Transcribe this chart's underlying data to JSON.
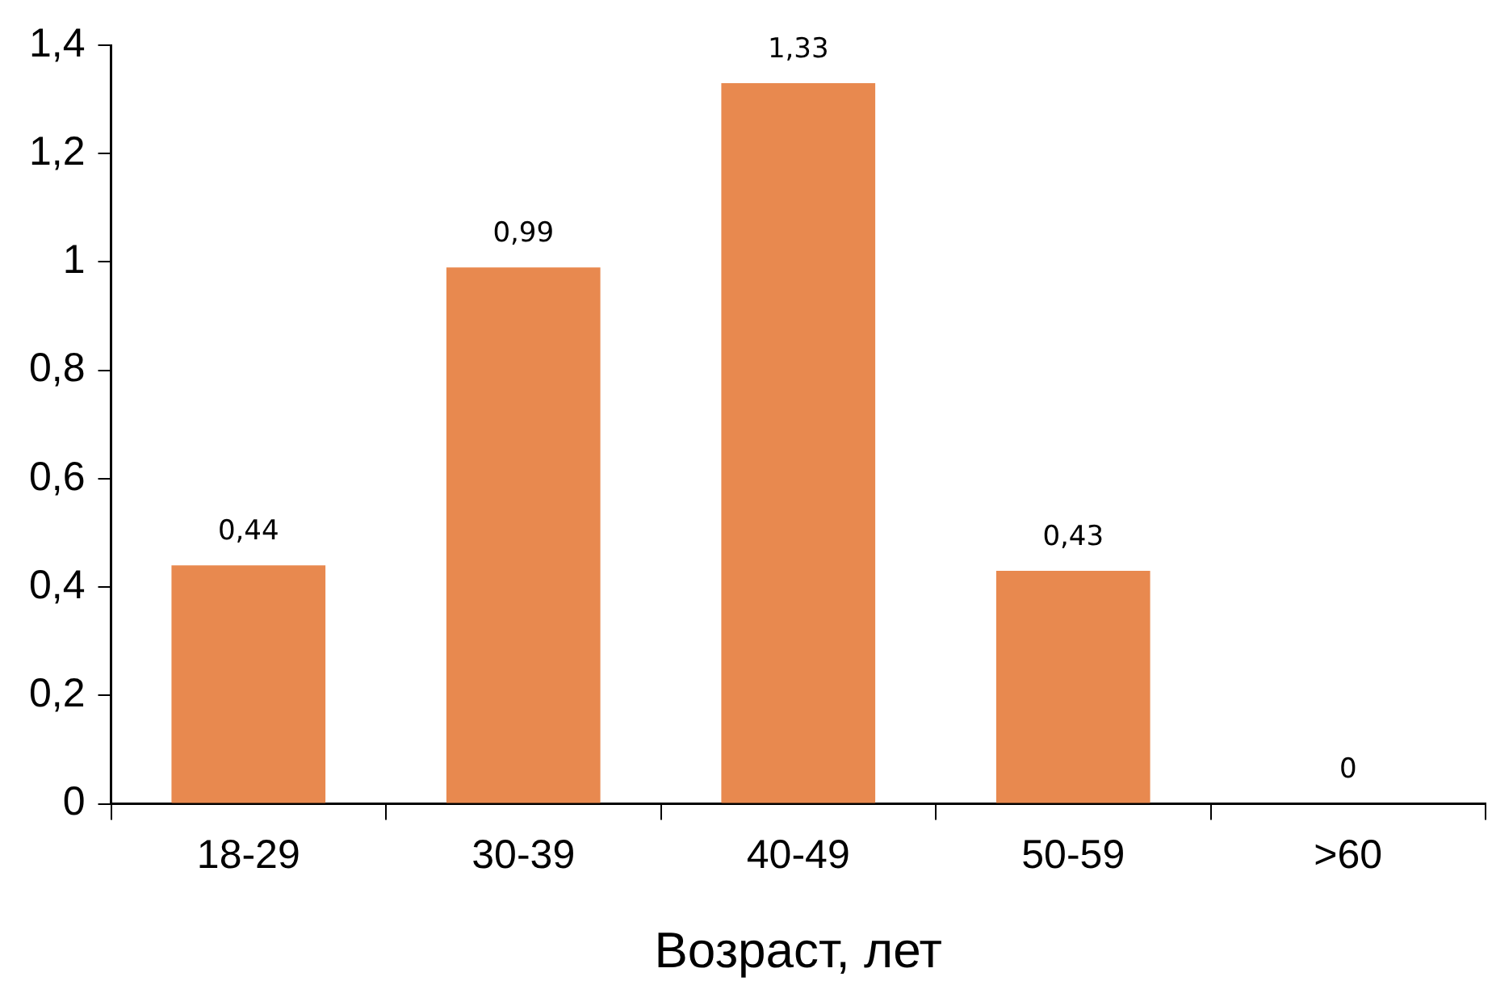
{
  "chart_data": {
    "type": "bar",
    "xlabel": "Возраст, лет",
    "categories": [
      "18-29",
      "30-39",
      "40-49",
      "50-59",
      ">60"
    ],
    "values": [
      0.44,
      0.99,
      1.33,
      0.43,
      0
    ],
    "value_labels": [
      "0,44",
      "0,99",
      "1,33",
      "0,43",
      "0"
    ],
    "color": "#e8894f",
    "ylim": [
      0,
      1.4
    ],
    "yticks": [
      {
        "value": 0,
        "label": "0"
      },
      {
        "value": 0.2,
        "label": "0,2"
      },
      {
        "value": 0.4,
        "label": "0,4"
      },
      {
        "value": 0.6,
        "label": "0,6"
      },
      {
        "value": 0.8,
        "label": "0,8"
      },
      {
        "value": 1,
        "label": "1"
      },
      {
        "value": 1.2,
        "label": "1,2"
      },
      {
        "value": 1.4,
        "label": "1,4"
      }
    ],
    "grid": false,
    "legend": false
  }
}
